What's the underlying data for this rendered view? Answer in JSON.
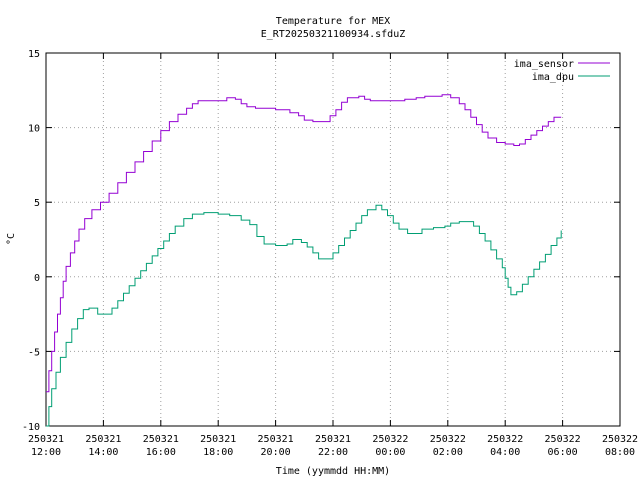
{
  "chart_data": {
    "type": "line",
    "title": "Temperature for MEX",
    "subtitle": "E_RT20250321100934.sfduZ",
    "xlabel": "Time (yymmdd HH:MM)",
    "ylabel": "°C",
    "xlim": [
      12,
      32
    ],
    "ylim": [
      -10,
      15
    ],
    "grid": true,
    "legend_position": "top-right",
    "x_ticks": [
      {
        "value": 12,
        "date": "250321",
        "time": "12:00"
      },
      {
        "value": 14,
        "date": "250321",
        "time": "14:00"
      },
      {
        "value": 16,
        "date": "250321",
        "time": "16:00"
      },
      {
        "value": 18,
        "date": "250321",
        "time": "18:00"
      },
      {
        "value": 20,
        "date": "250321",
        "time": "20:00"
      },
      {
        "value": 22,
        "date": "250321",
        "time": "22:00"
      },
      {
        "value": 24,
        "date": "250322",
        "time": "00:00"
      },
      {
        "value": 26,
        "date": "250322",
        "time": "02:00"
      },
      {
        "value": 28,
        "date": "250322",
        "time": "04:00"
      },
      {
        "value": 30,
        "date": "250322",
        "time": "06:00"
      },
      {
        "value": 32,
        "date": "250322",
        "time": "08:00"
      }
    ],
    "y_ticks": [
      -10,
      -5,
      0,
      5,
      10,
      15
    ],
    "series": [
      {
        "name": "ima_sensor",
        "color": "#9400d3",
        "points": [
          [
            12.0,
            -7.7
          ],
          [
            12.1,
            -6.3
          ],
          [
            12.2,
            -5.0
          ],
          [
            12.3,
            -3.7
          ],
          [
            12.4,
            -2.5
          ],
          [
            12.5,
            -1.4
          ],
          [
            12.6,
            -0.3
          ],
          [
            12.7,
            0.7
          ],
          [
            12.85,
            1.6
          ],
          [
            13.0,
            2.4
          ],
          [
            13.15,
            3.2
          ],
          [
            13.35,
            3.9
          ],
          [
            13.6,
            4.5
          ],
          [
            13.9,
            5.0
          ],
          [
            14.2,
            5.6
          ],
          [
            14.5,
            6.3
          ],
          [
            14.8,
            7.0
          ],
          [
            15.1,
            7.7
          ],
          [
            15.4,
            8.4
          ],
          [
            15.7,
            9.1
          ],
          [
            16.0,
            9.8
          ],
          [
            16.3,
            10.4
          ],
          [
            16.6,
            10.9
          ],
          [
            16.9,
            11.3
          ],
          [
            17.1,
            11.6
          ],
          [
            17.3,
            11.8
          ],
          [
            18.0,
            11.8
          ],
          [
            18.3,
            12.0
          ],
          [
            18.6,
            11.9
          ],
          [
            18.8,
            11.6
          ],
          [
            19.0,
            11.4
          ],
          [
            19.3,
            11.3
          ],
          [
            20.0,
            11.2
          ],
          [
            20.5,
            11.0
          ],
          [
            20.8,
            10.8
          ],
          [
            21.0,
            10.5
          ],
          [
            21.3,
            10.4
          ],
          [
            21.7,
            10.4
          ],
          [
            21.9,
            10.8
          ],
          [
            22.1,
            11.2
          ],
          [
            22.3,
            11.7
          ],
          [
            22.5,
            12.0
          ],
          [
            22.9,
            12.1
          ],
          [
            23.1,
            11.9
          ],
          [
            23.3,
            11.8
          ],
          [
            24.0,
            11.8
          ],
          [
            24.5,
            11.9
          ],
          [
            24.9,
            12.0
          ],
          [
            25.2,
            12.1
          ],
          [
            25.8,
            12.2
          ],
          [
            26.1,
            12.0
          ],
          [
            26.4,
            11.6
          ],
          [
            26.6,
            11.2
          ],
          [
            26.8,
            10.7
          ],
          [
            27.0,
            10.2
          ],
          [
            27.2,
            9.7
          ],
          [
            27.4,
            9.3
          ],
          [
            27.7,
            9.0
          ],
          [
            28.0,
            8.9
          ],
          [
            28.3,
            8.8
          ],
          [
            28.5,
            8.9
          ],
          [
            28.7,
            9.2
          ],
          [
            28.9,
            9.5
          ],
          [
            29.1,
            9.8
          ],
          [
            29.3,
            10.1
          ],
          [
            29.5,
            10.4
          ],
          [
            29.7,
            10.7
          ],
          [
            29.95,
            10.7
          ]
        ]
      },
      {
        "name": "ima_dpu",
        "color": "#009e73",
        "points": [
          [
            12.0,
            -10.0
          ],
          [
            12.1,
            -8.7
          ],
          [
            12.2,
            -7.5
          ],
          [
            12.35,
            -6.4
          ],
          [
            12.5,
            -5.4
          ],
          [
            12.7,
            -4.4
          ],
          [
            12.9,
            -3.5
          ],
          [
            13.1,
            -2.8
          ],
          [
            13.3,
            -2.2
          ],
          [
            13.5,
            -2.1
          ],
          [
            13.8,
            -2.5
          ],
          [
            14.1,
            -2.5
          ],
          [
            14.3,
            -2.1
          ],
          [
            14.5,
            -1.6
          ],
          [
            14.7,
            -1.1
          ],
          [
            14.9,
            -0.6
          ],
          [
            15.1,
            -0.1
          ],
          [
            15.3,
            0.4
          ],
          [
            15.5,
            0.9
          ],
          [
            15.7,
            1.4
          ],
          [
            15.9,
            1.9
          ],
          [
            16.1,
            2.4
          ],
          [
            16.3,
            2.9
          ],
          [
            16.5,
            3.4
          ],
          [
            16.8,
            3.9
          ],
          [
            17.1,
            4.2
          ],
          [
            17.5,
            4.3
          ],
          [
            18.0,
            4.2
          ],
          [
            18.4,
            4.1
          ],
          [
            18.8,
            3.8
          ],
          [
            19.1,
            3.5
          ],
          [
            19.35,
            2.7
          ],
          [
            19.6,
            2.2
          ],
          [
            20.0,
            2.1
          ],
          [
            20.4,
            2.2
          ],
          [
            20.6,
            2.5
          ],
          [
            20.9,
            2.3
          ],
          [
            21.1,
            2.0
          ],
          [
            21.3,
            1.6
          ],
          [
            21.5,
            1.2
          ],
          [
            21.8,
            1.2
          ],
          [
            22.0,
            1.6
          ],
          [
            22.2,
            2.1
          ],
          [
            22.4,
            2.6
          ],
          [
            22.6,
            3.1
          ],
          [
            22.8,
            3.6
          ],
          [
            23.0,
            4.1
          ],
          [
            23.2,
            4.5
          ],
          [
            23.5,
            4.8
          ],
          [
            23.7,
            4.5
          ],
          [
            23.9,
            4.1
          ],
          [
            24.1,
            3.6
          ],
          [
            24.3,
            3.2
          ],
          [
            24.6,
            2.9
          ],
          [
            24.9,
            2.9
          ],
          [
            25.1,
            3.2
          ],
          [
            25.5,
            3.3
          ],
          [
            25.9,
            3.4
          ],
          [
            26.1,
            3.6
          ],
          [
            26.4,
            3.7
          ],
          [
            26.7,
            3.7
          ],
          [
            26.9,
            3.4
          ],
          [
            27.1,
            2.9
          ],
          [
            27.3,
            2.4
          ],
          [
            27.5,
            1.8
          ],
          [
            27.7,
            1.2
          ],
          [
            27.9,
            0.6
          ],
          [
            28.0,
            -0.1
          ],
          [
            28.1,
            -0.7
          ],
          [
            28.2,
            -1.2
          ],
          [
            28.4,
            -1.0
          ],
          [
            28.6,
            -0.5
          ],
          [
            28.8,
            0.0
          ],
          [
            29.0,
            0.5
          ],
          [
            29.2,
            1.0
          ],
          [
            29.4,
            1.5
          ],
          [
            29.6,
            2.1
          ],
          [
            29.8,
            2.6
          ],
          [
            29.95,
            3.1
          ]
        ]
      }
    ]
  }
}
